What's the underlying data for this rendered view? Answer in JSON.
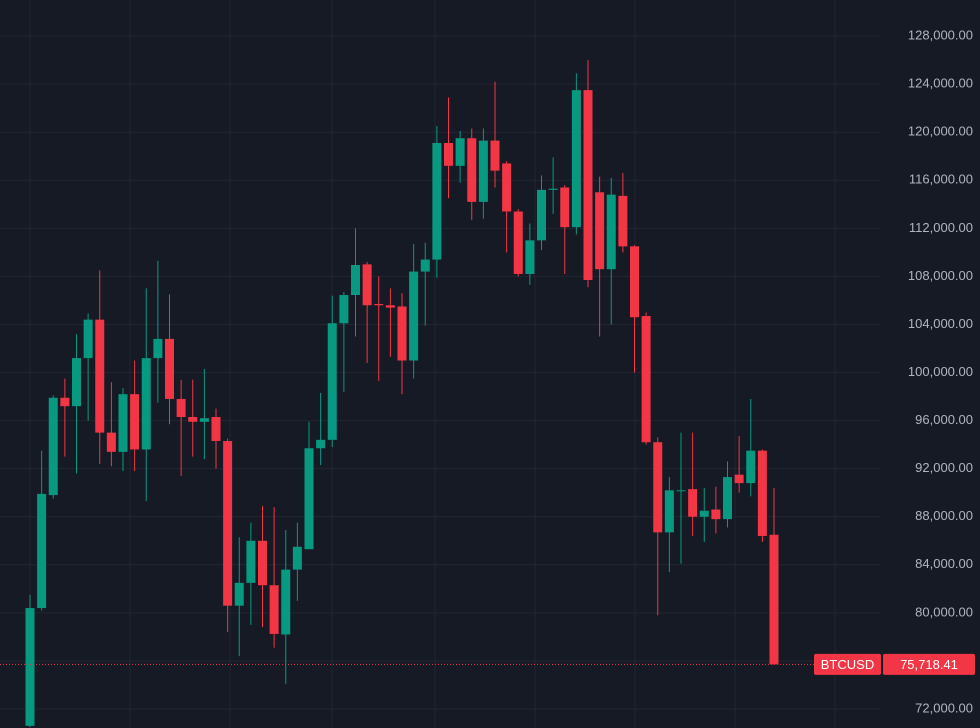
{
  "chart_data": {
    "type": "candlestick",
    "symbol": "BTCUSD",
    "last_price": 75718.41,
    "last_price_label": "75,718.41",
    "up_color": "#089981",
    "down_color": "#f23645",
    "grid": true,
    "ylim": [
      70420,
      131000
    ],
    "yticks": [
      {
        "value": 72000,
        "label": "72,000.00"
      },
      {
        "value": 76000,
        "label": "76,000.00"
      },
      {
        "value": 80000,
        "label": "80,000.00"
      },
      {
        "value": 84000,
        "label": "84,000.00"
      },
      {
        "value": 88000,
        "label": "88,000.00"
      },
      {
        "value": 92000,
        "label": "92,000.00"
      },
      {
        "value": 96000,
        "label": "96,000.00"
      },
      {
        "value": 100000,
        "label": "100,000.00"
      },
      {
        "value": 104000,
        "label": "104,000.00"
      },
      {
        "value": 108000,
        "label": "108,000.00"
      },
      {
        "value": 112000,
        "label": "112,000.00"
      },
      {
        "value": 116000,
        "label": "116,000.00"
      },
      {
        "value": 120000,
        "label": "120,000.00"
      },
      {
        "value": 124000,
        "label": "124,000.00"
      },
      {
        "value": 128000,
        "label": "128,000.00"
      }
    ],
    "open": [
      70600,
      80400,
      89800,
      97900,
      97200,
      101200,
      104400,
      95000,
      93400,
      98200,
      93600,
      101200,
      102800,
      97800,
      96300,
      95900,
      96300,
      94300,
      80600,
      82500,
      86000,
      82300,
      78200,
      83600,
      85300,
      93700,
      94400,
      104100,
      106450,
      109000,
      105700,
      105600,
      105500,
      101000,
      108400,
      109400,
      119100,
      117200,
      119500,
      114200,
      119300,
      117400,
      113400,
      108200,
      111000,
      115200,
      115400,
      112100,
      123500,
      115000,
      108600,
      114700,
      110500,
      104700,
      94200,
      86700,
      90200,
      90300,
      88000,
      88600,
      87800,
      91500,
      90800,
      93500,
      86500
    ],
    "high": [
      81500,
      93500,
      98100,
      99500,
      103200,
      104900,
      108500,
      99200,
      98700,
      101000,
      107000,
      109300,
      106500,
      99400,
      99400,
      100300,
      97000,
      94500,
      86300,
      87500,
      88900,
      88800,
      86900,
      87500,
      95900,
      98300,
      106400,
      106700,
      112000,
      109200,
      108000,
      107000,
      106600,
      110700,
      110800,
      120500,
      122900,
      120100,
      120300,
      120300,
      124200,
      117600,
      113600,
      112400,
      116400,
      117900,
      115600,
      124900,
      126000,
      116300,
      116200,
      116600,
      110600,
      105000,
      94600,
      91300,
      95000,
      95000,
      90400,
      90500,
      92600,
      94700,
      97800,
      93600,
      90400
    ],
    "low": [
      70500,
      80200,
      89500,
      93000,
      91600,
      96000,
      92400,
      92200,
      91800,
      91800,
      89300,
      97500,
      95700,
      91400,
      93000,
      92800,
      92000,
      78400,
      76400,
      79000,
      78800,
      77100,
      74100,
      81000,
      85300,
      92300,
      93800,
      98400,
      103000,
      100800,
      99300,
      101300,
      98200,
      99500,
      103900,
      107900,
      114500,
      115800,
      112700,
      112800,
      115400,
      110000,
      108000,
      107300,
      110200,
      113200,
      108200,
      111500,
      107100,
      103000,
      104000,
      110000,
      100000,
      94000,
      79800,
      83400,
      84100,
      86400,
      85900,
      86600,
      87100,
      90000,
      89700,
      85900,
      75700
    ],
    "close": [
      80400,
      89900,
      97900,
      97200,
      101200,
      104400,
      95000,
      93400,
      98200,
      93600,
      101200,
      102800,
      97800,
      96300,
      95900,
      96200,
      94300,
      80600,
      82500,
      86000,
      82300,
      78250,
      83600,
      85500,
      93700,
      94400,
      104100,
      106450,
      108950,
      105600,
      105600,
      105400,
      101000,
      108400,
      109400,
      119100,
      117200,
      119500,
      114200,
      119300,
      116800,
      113400,
      108200,
      111000,
      115200,
      115300,
      112100,
      123500,
      107700,
      108600,
      114800,
      110500,
      104600,
      94200,
      86700,
      90200,
      90200,
      88000,
      88500,
      87800,
      91300,
      90800,
      93500,
      86400,
      75718.41
    ]
  }
}
